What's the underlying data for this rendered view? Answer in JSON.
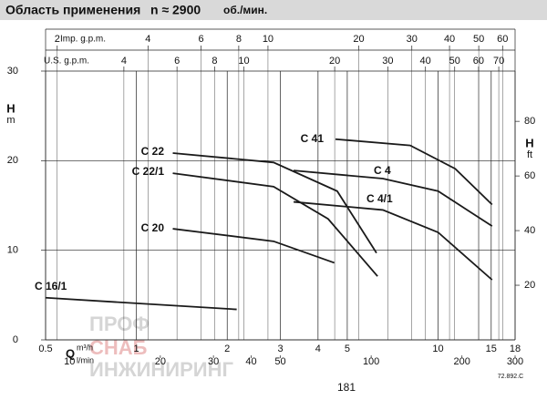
{
  "chart_data": {
    "type": "line",
    "title": "Область применения",
    "subtitle": "n ≈ 2900",
    "subtitle_unit": "об./мин.",
    "x_log": true,
    "xlim": [
      0.5,
      18
    ],
    "xticks": [
      0.5,
      1,
      2,
      3,
      4,
      5,
      10,
      15,
      18
    ],
    "x_label": "Q",
    "x_unit": "m³/h",
    "x2_axes": [
      {
        "label": "Imp. g.p.m.",
        "xlim": [
          1.83,
          66
        ],
        "xticks": [
          2,
          4,
          6,
          8,
          10,
          20,
          30,
          40,
          50,
          60
        ]
      },
      {
        "label": "U.S. g.p.m.",
        "xlim": [
          2.2,
          79.3
        ],
        "xticks": [
          4,
          6,
          8,
          10,
          20,
          30,
          40,
          50,
          60,
          70
        ]
      }
    ],
    "x3_axis": {
      "label": "l/min",
      "xlim": [
        8.33,
        300
      ],
      "xticks": [
        10,
        20,
        30,
        40,
        50,
        100,
        200,
        300
      ]
    },
    "ylim": [
      0,
      30
    ],
    "yticks": [
      0,
      10,
      20,
      30
    ],
    "y_label": "H",
    "y_unit": "m",
    "y2lim": [
      0,
      98.4
    ],
    "y2ticks": [
      20,
      40,
      60,
      80
    ],
    "y2_label": "H",
    "y2_unit": "ft",
    "grid": true,
    "series": [
      {
        "name": "C 22",
        "color": "#1a1a1a",
        "x": [
          1.32,
          2.85,
          4.63,
          6.25
        ],
        "values": [
          20.85,
          19.8,
          16.6,
          9.7
        ]
      },
      {
        "name": "C 22/1",
        "color": "#1a1a1a",
        "x": [
          1.32,
          2.85,
          4.32,
          6.3
        ],
        "values": [
          18.6,
          17.1,
          13.5,
          7.1
        ]
      },
      {
        "name": "C 20",
        "color": "#1a1a1a",
        "x": [
          1.32,
          2.85,
          4.53
        ],
        "values": [
          12.4,
          11.0,
          8.6
        ]
      },
      {
        "name": "C 16/1",
        "color": "#1a1a1a",
        "x": [
          0.5,
          2.15
        ],
        "values": [
          4.7,
          3.4
        ]
      },
      {
        "name": "C 41",
        "color": "#1a1a1a",
        "x": [
          4.57,
          8.08,
          11.4,
          15.1
        ],
        "values": [
          22.4,
          21.7,
          19.1,
          15.1
        ]
      },
      {
        "name": "C 4",
        "color": "#1a1a1a",
        "x": [
          3.32,
          6.56,
          10,
          15.1
        ],
        "values": [
          18.9,
          18.0,
          16.6,
          12.7
        ]
      },
      {
        "name": "C 4/1",
        "color": "#1a1a1a",
        "x": [
          3.32,
          6.56,
          10,
          15.1
        ],
        "values": [
          15.4,
          14.5,
          12.0,
          6.7
        ]
      }
    ],
    "page_number": "181",
    "code": "72.892.C"
  },
  "watermark": [
    "ПРОФ",
    "СНАБ",
    "ИНЖИНИРИНГ"
  ]
}
